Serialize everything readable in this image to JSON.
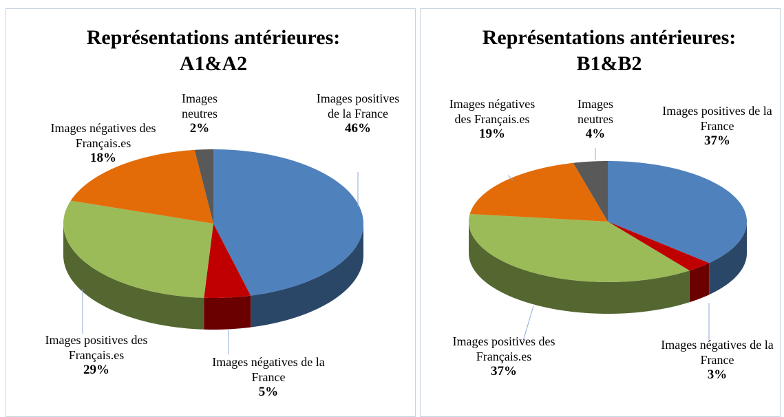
{
  "chart_data": [
    {
      "type": "pie3d",
      "title": [
        "Représentations antérieures:",
        "A1&A2"
      ],
      "categories": [
        "Images positives de la France",
        "Images négatives de la France",
        "Images positives des Français.es",
        "Images négatives des Français.es",
        "Images neutres"
      ],
      "values": [
        46,
        5,
        29,
        18,
        2
      ],
      "value_labels": [
        "46%",
        "5%",
        "29%",
        "18%",
        "2%"
      ],
      "colors": [
        "#4f81bd",
        "#c00000",
        "#9bbb59",
        "#e36c09",
        "#595959"
      ]
    },
    {
      "type": "pie3d",
      "title": [
        "Représentations antérieures:",
        "B1&B2"
      ],
      "categories": [
        "Images positives de la France",
        "Images négatives de la France",
        "Images positives des Français.es",
        "Images négatives des Français.es",
        "Images neutres"
      ],
      "values": [
        37,
        3,
        37,
        19,
        4
      ],
      "value_labels": [
        "37%",
        "3%",
        "37%",
        "19%",
        "4%"
      ],
      "colors": [
        "#4f81bd",
        "#c00000",
        "#9bbb59",
        "#e36c09",
        "#595959"
      ]
    }
  ]
}
